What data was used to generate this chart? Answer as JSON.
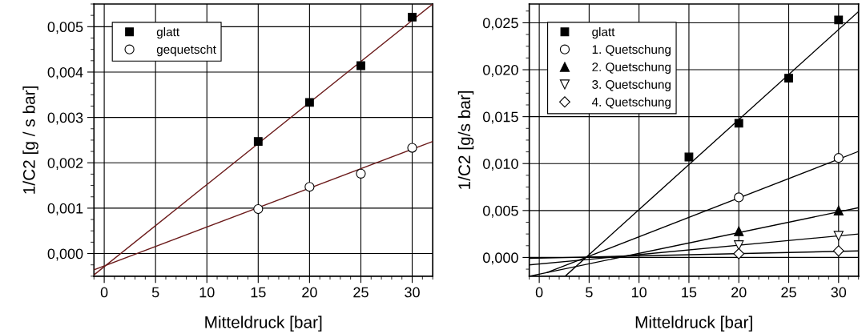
{
  "chart_data": [
    {
      "type": "scatter",
      "xlabel": "Mitteldruck [bar]",
      "ylabel": "1/C2 [g / s bar]",
      "xlim": [
        -1,
        32
      ],
      "ylim": [
        -0.0005,
        0.0055
      ],
      "xticks": [
        0,
        5,
        10,
        15,
        20,
        25,
        30
      ],
      "yticks": [
        {
          "value": 0.0,
          "label": "0,000"
        },
        {
          "value": 0.001,
          "label": "0,001"
        },
        {
          "value": 0.002,
          "label": "0,002"
        },
        {
          "value": 0.003,
          "label": "0,003"
        },
        {
          "value": 0.004,
          "label": "0,004"
        },
        {
          "value": 0.005,
          "label": "0,005"
        }
      ],
      "grid": true,
      "legend": "top left",
      "series": [
        {
          "name": "glatt",
          "color": "#000000",
          "marker": "square",
          "x": [
            15,
            20,
            25,
            30
          ],
          "values": [
            0.00247,
            0.00333,
            0.00414,
            0.00521
          ]
        },
        {
          "name": "gequetscht",
          "color": "#000000",
          "marker": "circle_open",
          "x": [
            15,
            20,
            25,
            30
          ],
          "values": [
            0.00098,
            0.00147,
            0.00176,
            0.00233
          ]
        },
        {
          "type": "line",
          "color": "#6b1a1a",
          "x": [
            -1,
            32
          ],
          "values": [
            -0.00047,
            0.0055
          ]
        },
        {
          "type": "line",
          "color": "#6b1a1a",
          "x": [
            -1,
            32
          ],
          "values": [
            -0.00036,
            0.00247
          ]
        }
      ]
    },
    {
      "type": "scatter",
      "xlabel": "Mitteldruck [bar]",
      "ylabel": "1/C2 [g/s bar]",
      "xlim": [
        -1,
        32
      ],
      "ylim": [
        -0.002,
        0.027
      ],
      "xticks": [
        0,
        5,
        10,
        15,
        20,
        25,
        30
      ],
      "yticks": [
        {
          "value": 0.0,
          "label": "0,000"
        },
        {
          "value": 0.005,
          "label": "0,005"
        },
        {
          "value": 0.01,
          "label": "0,010"
        },
        {
          "value": 0.015,
          "label": "0,015"
        },
        {
          "value": 0.02,
          "label": "0,020"
        },
        {
          "value": 0.025,
          "label": "0,025"
        }
      ],
      "grid": true,
      "legend": "top left",
      "series": [
        {
          "name": "glatt",
          "color": "#000000",
          "marker": "square",
          "x": [
            15,
            20,
            25,
            30
          ],
          "values": [
            0.0107,
            0.0143,
            0.0191,
            0.0253
          ]
        },
        {
          "name": "1. Quetschung",
          "color": "#000000",
          "marker": "circle_open",
          "x": [
            20,
            30
          ],
          "values": [
            0.0064,
            0.0106
          ]
        },
        {
          "name": "2. Quetschung",
          "color": "#000000",
          "marker": "triangle",
          "x": [
            20,
            30
          ],
          "values": [
            0.0028,
            0.005
          ]
        },
        {
          "name": "3. Quetschung",
          "color": "#000000",
          "marker": "triangle_down_open",
          "x": [
            20,
            30
          ],
          "values": [
            0.0013,
            0.0023
          ]
        },
        {
          "name": "4. Quetschung",
          "color": "#000000",
          "marker": "diamond_open",
          "x": [
            20,
            30
          ],
          "values": [
            0.0004,
            0.0007
          ]
        },
        {
          "type": "line",
          "color": "#000000",
          "x": [
            2.6,
            32
          ],
          "values": [
            -0.002,
            0.0262
          ]
        },
        {
          "type": "line",
          "color": "#000000",
          "x": [
            0.8,
            32
          ],
          "values": [
            -0.0016,
            0.0113
          ]
        },
        {
          "type": "line",
          "color": "#000000",
          "x": [
            -1,
            32
          ],
          "values": [
            -0.002,
            0.0053
          ]
        },
        {
          "type": "line",
          "color": "#000000",
          "x": [
            -1,
            32
          ],
          "values": [
            -0.0008,
            0.0025
          ]
        },
        {
          "type": "line",
          "color": "#000000",
          "x": [
            -1,
            32
          ],
          "values": [
            -0.0001,
            0.0007
          ]
        }
      ]
    }
  ]
}
